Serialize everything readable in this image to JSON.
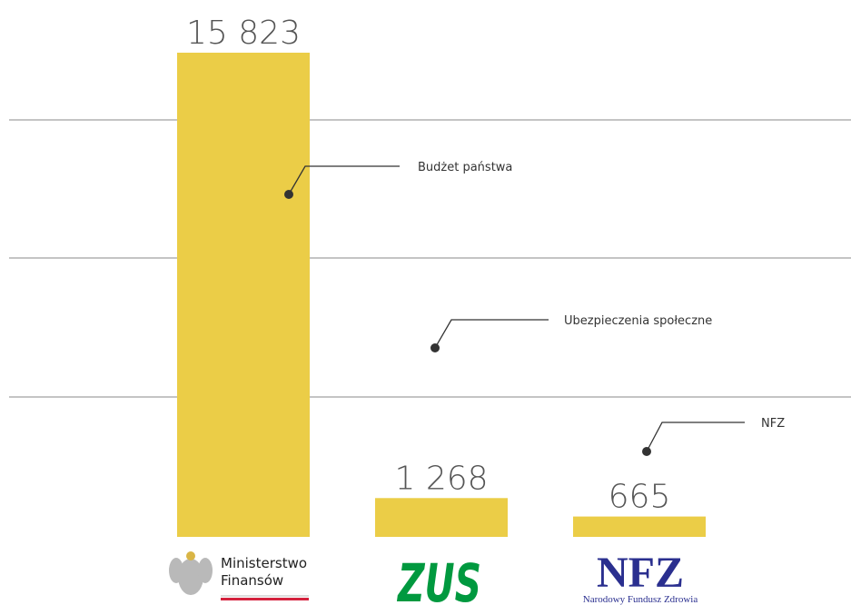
{
  "chart_data": {
    "type": "bar",
    "values": [
      15823,
      1268,
      665
    ],
    "value_labels": [
      "15 823",
      "1 268",
      "665"
    ],
    "color": "#ebcd47",
    "annotations": [
      "Budżet państwa",
      "Ubezpieczenia społeczne",
      "NFZ"
    ],
    "logos": [
      {
        "lines": [
          "Ministerstwo",
          "Finansów"
        ]
      },
      {
        "lines": [
          "ZUS"
        ]
      },
      {
        "lines": [
          "NFZ"
        ],
        "caption": "Narodowy Fundusz Zdrowia"
      }
    ]
  }
}
